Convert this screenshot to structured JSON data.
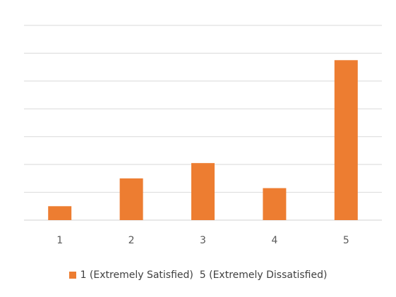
{
  "colors": {
    "bar": "#ED7D31",
    "grid": "#D9D9D9"
  },
  "chart_data": {
    "type": "bar",
    "categories": [
      "1",
      "2",
      "3",
      "4",
      "5"
    ],
    "series": [
      {
        "name": "1 (Extremely Satisfied)  5 (Extremely Dissatisfied)",
        "values": [
          0.5,
          1.5,
          2.05,
          1.15,
          5.75
        ]
      }
    ],
    "ylim": [
      0,
      7
    ],
    "grid": true,
    "legend_position": "bottom"
  }
}
